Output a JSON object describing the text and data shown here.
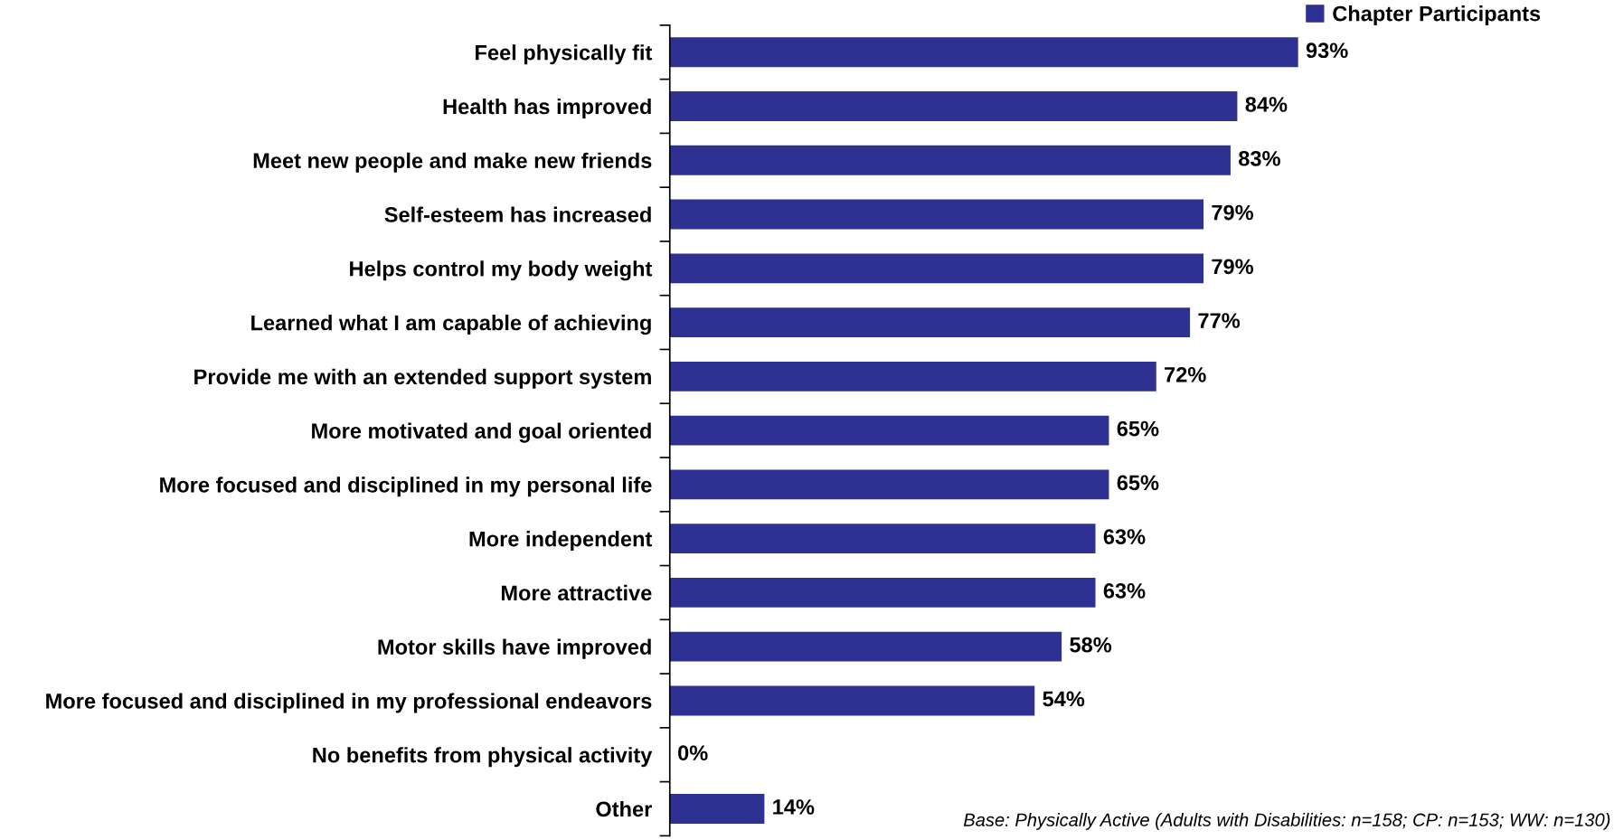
{
  "chart_data": {
    "type": "bar",
    "orientation": "horizontal",
    "categories": [
      "Feel physically fit",
      "Health has improved",
      "Meet new people and make new friends",
      "Self-esteem has increased",
      "Helps control my body weight",
      "Learned what I am capable of achieving",
      "Provide me with an extended support system",
      "More motivated and goal oriented",
      "More focused and disciplined in my personal life",
      "More independent",
      "More attractive",
      "Motor skills have improved",
      "More focused and disciplined in my professional endeavors",
      "No benefits from physical activity",
      "Other"
    ],
    "series": [
      {
        "name": "Chapter Participants",
        "color": "#2e3192",
        "values": [
          93,
          84,
          83,
          79,
          79,
          77,
          72,
          65,
          65,
          63,
          63,
          58,
          54,
          0,
          14
        ],
        "value_labels": [
          "93%",
          "84%",
          "83%",
          "79%",
          "79%",
          "77%",
          "72%",
          "65%",
          "65%",
          "63%",
          "63%",
          "58%",
          "54%",
          "0%",
          "14%"
        ]
      }
    ],
    "legend": "top right",
    "grid": false,
    "annotations": [
      "Base: Physically Active (Adults with Disabilities: n=158; CP: n=153; WW: n=130)"
    ]
  }
}
